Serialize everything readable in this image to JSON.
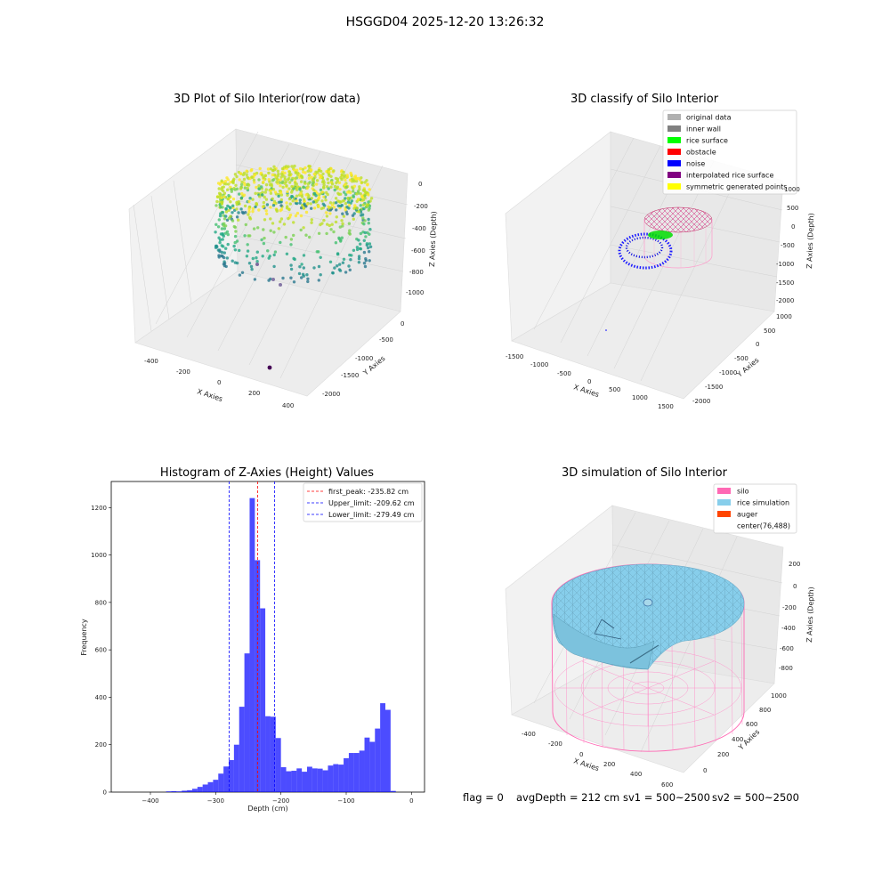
{
  "suptitle": "HSGGD04 2025-12-20 13:26:32",
  "panels": {
    "raw": {
      "title": "3D Plot of Silo Interior(row data)",
      "xlabel": "X Axies",
      "ylabel": "Y Axies",
      "zlabel": "Z Axies (Depth)",
      "xticks": [
        "-400",
        "-200",
        "0",
        "200",
        "400"
      ],
      "yticks": [
        "0",
        "-500",
        "-1000",
        "-1500",
        "-2000"
      ],
      "zticks": [
        "0",
        "-200",
        "-400",
        "-600",
        "-800",
        "-1000"
      ]
    },
    "classify": {
      "title": "3D classify of Silo Interior",
      "xlabel": "X Axies",
      "ylabel": "Y Axies",
      "zlabel": "Z Axies (Depth)",
      "xticks": [
        "-1500",
        "-1000",
        "-500",
        "0",
        "500",
        "1000",
        "1500"
      ],
      "yticks": [
        "1000",
        "500",
        "0",
        "-500",
        "-1000",
        "-1500",
        "-2000"
      ],
      "zticks": [
        "1000",
        "500",
        "0",
        "-500",
        "-1000",
        "-1500",
        "-2000"
      ],
      "legend": [
        {
          "label": "original data",
          "color": "#b0b0b0"
        },
        {
          "label": "inner wall",
          "color": "#808080"
        },
        {
          "label": "rice surface",
          "color": "#00ff00"
        },
        {
          "label": "obstacle",
          "color": "#ff0000"
        },
        {
          "label": "noise",
          "color": "#0000ff"
        },
        {
          "label": "interpolated rice surface",
          "color": "#800080"
        },
        {
          "label": "symmetric generated points",
          "color": "#ffff00"
        }
      ]
    },
    "histogram": {
      "title": "Histogram of Z-Axies (Height) Values",
      "xlabel": "Depth (cm)",
      "ylabel": "Frequency",
      "legend": [
        {
          "label": "first_peak: -235.82 cm",
          "color": "#ff0000"
        },
        {
          "label": "Upper_limit: -209.62 cm",
          "color": "#0000ff"
        },
        {
          "label": "Lower_limit: -279.49 cm",
          "color": "#0000ff"
        }
      ]
    },
    "simulation": {
      "title": "3D simulation of Silo Interior",
      "xlabel": "X Axies",
      "ylabel": "Y Axies",
      "zlabel": "Z Axies (Depth)",
      "xticks": [
        "-400",
        "-200",
        "0",
        "200",
        "400",
        "600"
      ],
      "yticks": [
        "0",
        "200",
        "400",
        "600",
        "800",
        "1000"
      ],
      "zticks": [
        "200",
        "0",
        "-200",
        "-400",
        "-600",
        "-800"
      ],
      "legend": [
        {
          "label": "silo",
          "color": "#ff69b4"
        },
        {
          "label": "rice simulation",
          "color": "#87ceeb"
        },
        {
          "label": "auger",
          "color": "#ff4500"
        },
        {
          "label": "center(76,488)",
          "color": "none"
        }
      ]
    }
  },
  "status": {
    "flag": "flag = 0",
    "avg_depth": "avgDepth = 212 cm",
    "sv1": "sv1 = 500~2500",
    "sv2": "sv2 = 500~2500"
  },
  "chart_data": [
    {
      "type": "scatter",
      "title": "3D Plot of Silo Interior(row data)",
      "xlabel": "X Axies",
      "ylabel": "Y Axies",
      "zlabel": "Z Axies (Depth)",
      "xlim": [
        -500,
        450
      ],
      "ylim": [
        -2200,
        200
      ],
      "zlim": [
        -1100,
        50
      ],
      "note": "3D point cloud colored by depth (viridis)"
    },
    {
      "type": "scatter",
      "title": "3D classify of Silo Interior",
      "xlabel": "X Axies",
      "ylabel": "Y Axies",
      "zlabel": "Z Axies (Depth)",
      "xlim": [
        -1600,
        1600
      ],
      "ylim": [
        -2100,
        1100
      ],
      "zlim": [
        -2100,
        1100
      ],
      "series": [
        {
          "name": "original data"
        },
        {
          "name": "inner wall"
        },
        {
          "name": "rice surface"
        },
        {
          "name": "obstacle"
        },
        {
          "name": "noise"
        },
        {
          "name": "interpolated rice surface"
        },
        {
          "name": "symmetric generated points"
        }
      ]
    },
    {
      "type": "bar",
      "title": "Histogram of Z-Axies (Height) Values",
      "xlabel": "Depth (cm)",
      "ylabel": "Frequency",
      "xlim": [
        -460,
        20
      ],
      "ylim": [
        0,
        1310
      ],
      "xticks": [
        -400,
        -300,
        -200,
        -100,
        0
      ],
      "yticks": [
        0,
        200,
        400,
        600,
        800,
        1000,
        1200
      ],
      "bin_width": 8,
      "bins": [
        [
          -376,
          3
        ],
        [
          -368,
          4
        ],
        [
          -360,
          3
        ],
        [
          -352,
          6
        ],
        [
          -344,
          8
        ],
        [
          -336,
          14
        ],
        [
          -328,
          22
        ],
        [
          -320,
          32
        ],
        [
          -312,
          42
        ],
        [
          -304,
          52
        ],
        [
          -296,
          78
        ],
        [
          -288,
          108
        ],
        [
          -280,
          135
        ],
        [
          -272,
          200
        ],
        [
          -264,
          360
        ],
        [
          -256,
          585
        ],
        [
          -248,
          1240
        ],
        [
          -240,
          978
        ],
        [
          -232,
          775
        ],
        [
          -224,
          320
        ],
        [
          -216,
          318
        ],
        [
          -208,
          228
        ],
        [
          -200,
          105
        ],
        [
          -192,
          88
        ],
        [
          -184,
          90
        ],
        [
          -176,
          100
        ],
        [
          -168,
          86
        ],
        [
          -160,
          107
        ],
        [
          -152,
          100
        ],
        [
          -144,
          99
        ],
        [
          -136,
          92
        ],
        [
          -128,
          112
        ],
        [
          -120,
          118
        ],
        [
          -112,
          116
        ],
        [
          -104,
          143
        ],
        [
          -96,
          165
        ],
        [
          -88,
          165
        ],
        [
          -80,
          175
        ],
        [
          -72,
          230
        ],
        [
          -64,
          212
        ],
        [
          -56,
          268
        ],
        [
          -48,
          375
        ],
        [
          -40,
          347
        ],
        [
          -32,
          5
        ]
      ],
      "vlines": [
        {
          "name": "first_peak: -235.82 cm",
          "x": -235.82
        },
        {
          "name": "Upper_limit: -209.62 cm",
          "x": -209.62
        },
        {
          "name": "Lower_limit: -279.49 cm",
          "x": -279.49
        }
      ]
    },
    {
      "type": "area",
      "title": "3D simulation of Silo Interior",
      "xlabel": "X Axies",
      "ylabel": "Y Axies",
      "zlabel": "Z Axies (Depth)",
      "xlim": [
        -500,
        700
      ],
      "ylim": [
        -100,
        1100
      ],
      "zlim": [
        -900,
        300
      ],
      "series": [
        {
          "name": "silo"
        },
        {
          "name": "rice simulation"
        },
        {
          "name": "auger"
        }
      ],
      "center": [
        76,
        488
      ]
    }
  ]
}
